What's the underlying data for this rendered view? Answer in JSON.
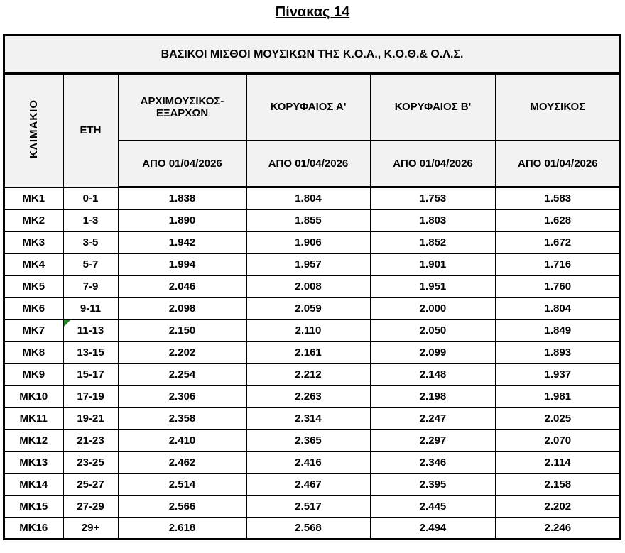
{
  "page_title": "Πίνακας 14",
  "table": {
    "main_header": "ΒΑΣΙΚΟΙ ΜΙΣΘΟΙ ΜΟΥΣΙΚΩΝ ΤΗΣ Κ.Ο.Α., Κ.Ο.Θ.& Ο.Λ.Σ.",
    "headers": {
      "scale": "ΚΛΙΜΑΚΙΟ",
      "years": "ΕΤΗ",
      "roles": [
        "ΑΡΧΙΜΟΥΣΙΚΟΣ-ΕΞΑΡΧΩΝ",
        "ΚΟΡΥΦΑΙΟΣ Α'",
        "ΚΟΡΥΦΑΙΟΣ Β'",
        "ΜΟΥΣΙΚΟΣ"
      ],
      "dates": [
        "ΑΠΟ 01/04/2026",
        "ΑΠΟ 01/04/2026",
        "ΑΠΟ 01/04/2026",
        "ΑΠΟ 01/04/2026"
      ]
    },
    "rows": [
      {
        "scale": "MK1",
        "years": "0-1",
        "values": [
          "1.838",
          "1.804",
          "1.753",
          "1.583"
        ]
      },
      {
        "scale": "MK2",
        "years": "1-3",
        "values": [
          "1.890",
          "1.855",
          "1.803",
          "1.628"
        ]
      },
      {
        "scale": "MK3",
        "years": "3-5",
        "values": [
          "1.942",
          "1.906",
          "1.852",
          "1.672"
        ]
      },
      {
        "scale": "MK4",
        "years": "5-7",
        "values": [
          "1.994",
          "1.957",
          "1.901",
          "1.716"
        ]
      },
      {
        "scale": "MK5",
        "years": "7-9",
        "values": [
          "2.046",
          "2.008",
          "1.951",
          "1.760"
        ]
      },
      {
        "scale": "MK6",
        "years": "9-11",
        "values": [
          "2.098",
          "2.059",
          "2.000",
          "1.804"
        ]
      },
      {
        "scale": "MK7",
        "years": "11-13",
        "values": [
          "2.150",
          "2.110",
          "2.050",
          "1.849"
        ]
      },
      {
        "scale": "MK8",
        "years": "13-15",
        "values": [
          "2.202",
          "2.161",
          "2.099",
          "1.893"
        ]
      },
      {
        "scale": "MK9",
        "years": "15-17",
        "values": [
          "2.254",
          "2.212",
          "2.148",
          "1.937"
        ]
      },
      {
        "scale": "MK10",
        "years": "17-19",
        "values": [
          "2.306",
          "2.263",
          "2.198",
          "1.981"
        ]
      },
      {
        "scale": "MK11",
        "years": "19-21",
        "values": [
          "2.358",
          "2.314",
          "2.247",
          "2.025"
        ]
      },
      {
        "scale": "MK12",
        "years": "21-23",
        "values": [
          "2.410",
          "2.365",
          "2.297",
          "2.070"
        ]
      },
      {
        "scale": "MK13",
        "years": "23-25",
        "values": [
          "2.462",
          "2.416",
          "2.346",
          "2.114"
        ]
      },
      {
        "scale": "MK14",
        "years": "25-27",
        "values": [
          "2.514",
          "2.467",
          "2.395",
          "2.158"
        ]
      },
      {
        "scale": "MK15",
        "years": "27-29",
        "values": [
          "2.566",
          "2.517",
          "2.445",
          "2.202"
        ]
      },
      {
        "scale": "MK16",
        "years": "29+",
        "values": [
          "2.618",
          "2.568",
          "2.494",
          "2.246"
        ]
      }
    ]
  },
  "colors": {
    "header_background": "#f2f2f2",
    "border": "#000000",
    "text": "#000000",
    "flag_green": "#1e8a1e"
  }
}
